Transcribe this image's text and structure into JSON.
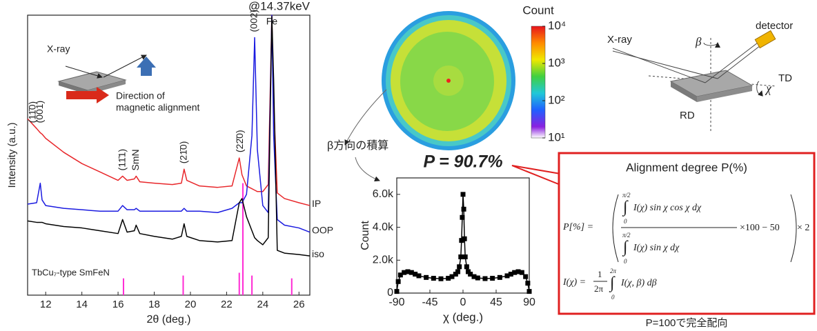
{
  "chart_data": [
    {
      "type": "line",
      "title": "@14.37keV",
      "x_label": "2θ (deg.)",
      "y_label": "Intensity (a.u.)",
      "xlim": [
        11,
        26.6
      ],
      "xticks": [
        12,
        14,
        16,
        18,
        20,
        22,
        24,
        26
      ],
      "ylim": [
        0,
        100
      ],
      "legend": "line-end",
      "x": [
        11,
        11.5,
        11.7,
        11.8,
        12,
        13,
        14,
        15,
        16,
        16.25,
        16.5,
        16.9,
        17,
        17.2,
        18,
        19,
        19.5,
        19.65,
        19.8,
        20.5,
        21.5,
        22.3,
        22.7,
        22.85,
        23.1,
        23.4,
        23.55,
        23.7,
        24,
        24.3,
        24.5,
        24.6,
        24.8,
        25.2,
        26,
        26.6
      ],
      "series": [
        {
          "name": "IP",
          "color": "#e8262a",
          "values": [
            63,
            59.5,
            58,
            57.5,
            56,
            51,
            47,
            44,
            41,
            42.5,
            41,
            41.5,
            42.5,
            40.5,
            40,
            39.5,
            40,
            45,
            41,
            39,
            38.5,
            39,
            49,
            43,
            39,
            38,
            37.5,
            37,
            37,
            39.5,
            100,
            69.5,
            36.5,
            34.5,
            33,
            32
          ]
        },
        {
          "name": "OOP",
          "color": "#1a1ae0",
          "values": [
            32.5,
            33,
            40,
            34,
            32,
            31,
            30.5,
            30,
            30,
            32,
            30.5,
            30.5,
            31,
            30,
            30,
            30,
            30,
            31,
            30,
            30,
            29.5,
            31,
            33,
            33,
            36,
            57,
            92,
            52,
            32,
            29.5,
            100,
            57,
            27,
            25,
            24,
            22.5
          ]
        },
        {
          "name": "iso",
          "color": "#000000",
          "values": [
            26.5,
            26,
            26,
            26,
            25.5,
            24.5,
            24,
            23,
            22,
            27,
            22.5,
            23,
            25,
            22,
            21,
            20,
            21,
            25.5,
            21,
            19.5,
            19,
            19.5,
            33,
            34.5,
            28,
            23,
            20.5,
            19.5,
            18,
            20.5,
            99.5,
            77,
            16,
            15,
            14.5,
            14
          ]
        }
      ],
      "peak_labels": [
        {
          "text": "(11̄0)",
          "x": 11.3
        },
        {
          "text": "(001)",
          "x": 11.7
        },
        {
          "text": "(11̄1)",
          "x": 16.25
        },
        {
          "text": "SmN",
          "x": 17
        },
        {
          "text": "(21̄0)",
          "x": 19.65
        },
        {
          "text": "(22̄0)",
          "x": 22.75
        },
        {
          "text": "(002)",
          "x": 23.55
        },
        {
          "text": "Fe",
          "x": 24.5
        }
      ],
      "reference": {
        "name": "TbCu₇-type SmFeN",
        "color": "#ff2ad4",
        "x": [
          16.3,
          19.6,
          22.7,
          22.9,
          23.4,
          25.6
        ],
        "values": [
          6,
          7,
          8,
          40,
          7,
          6
        ]
      }
    },
    {
      "type": "line",
      "markers": true,
      "annotation": "P = 90.7%",
      "x_label": "χ (deg.)",
      "y_label": "Count",
      "xlim": [
        -90,
        90
      ],
      "xticks": [
        -90,
        -45,
        0,
        45,
        90
      ],
      "ylim": [
        0,
        7000
      ],
      "yticks": [
        0,
        {
          "value": 2000,
          "label": "2.0k"
        },
        {
          "value": 4000,
          "label": "4.0k"
        },
        {
          "value": 6000,
          "label": "6.0k"
        }
      ],
      "x": [
        -90,
        -88,
        -85,
        -80,
        -75,
        -70,
        -65,
        -60,
        -50,
        -40,
        -30,
        -20,
        -15,
        -10,
        -7,
        -5,
        -3,
        -2,
        -1,
        0,
        1,
        2,
        3,
        5,
        7,
        10,
        15,
        20,
        30,
        40,
        50,
        60,
        65,
        70,
        75,
        80,
        85,
        88,
        90
      ],
      "series": [
        {
          "color": "#000000",
          "values": [
            100,
            700,
            1100,
            1250,
            1300,
            1250,
            1150,
            1050,
            950,
            900,
            870,
            900,
            1000,
            1150,
            1300,
            1600,
            2200,
            3200,
            4600,
            6000,
            5100,
            3300,
            2200,
            1600,
            1300,
            1150,
            1000,
            920,
            880,
            900,
            950,
            1050,
            1150,
            1250,
            1300,
            1250,
            1000,
            600,
            100
          ]
        }
      ]
    }
  ],
  "inset": {
    "xray": "X-ray",
    "direction_1": "Direction of",
    "direction_2": "magnetic alignment"
  },
  "pole_figure": {
    "caption": "β方向の積算",
    "colorbar": {
      "title": "Count",
      "log": true,
      "lim": [
        10,
        10000
      ],
      "ticks": [
        {
          "value": 10000,
          "label": "10⁴"
        },
        {
          "value": 1000,
          "label": "10³"
        },
        {
          "value": 100,
          "label": "10²"
        },
        {
          "value": 10,
          "label": "10¹"
        }
      ]
    }
  },
  "geometry": {
    "xray": "X-ray",
    "detector": "detector",
    "beta": "β",
    "td": "TD",
    "chi": "χ",
    "rd": "RD"
  },
  "formula_box": {
    "title": "Alignment degree P(%)",
    "lhs": "P[%] =",
    "integral": "∫",
    "upper": "π/2",
    "lower": "0",
    "numerator": "I(χ) sin χ cos χ dχ",
    "denominator": "I(χ) sin χ dχ",
    "tail": "×100 − 50",
    "factor": "× 2",
    "lhs2": "I(χ) =",
    "frac_num": "1",
    "frac_den": "2π",
    "upper2": "2π",
    "integrand2": "I(χ, β) dβ",
    "caption": "P=100で完全配向"
  }
}
